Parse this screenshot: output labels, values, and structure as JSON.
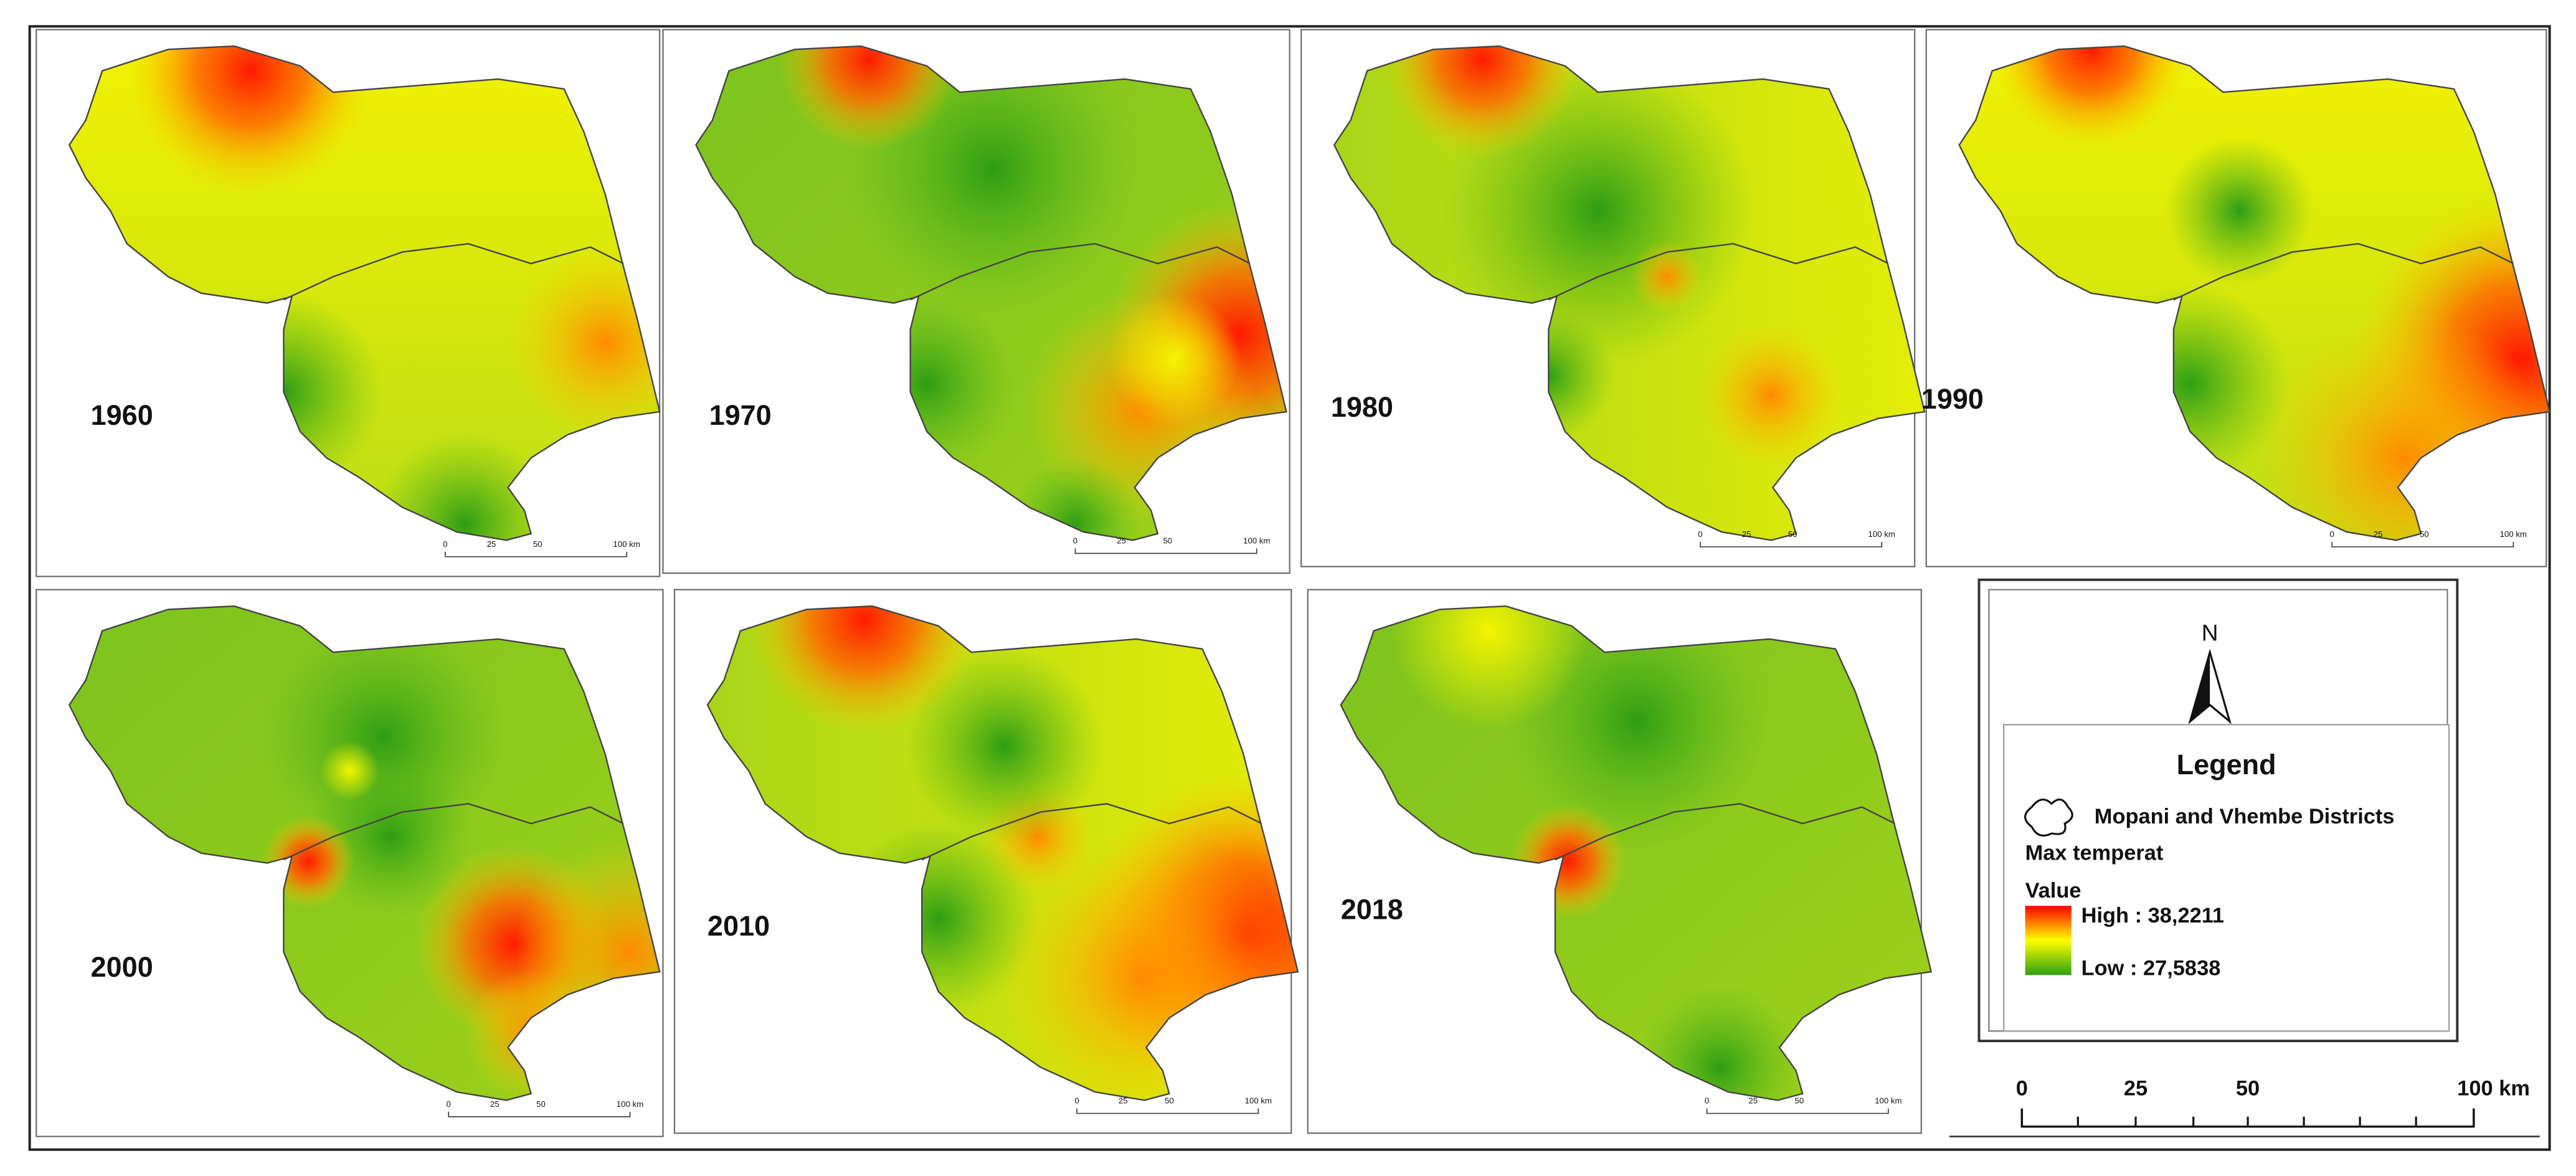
{
  "panels": [
    {
      "year": "1960",
      "scale": [
        "0",
        "25",
        "50",
        "100 km"
      ]
    },
    {
      "year": "1970",
      "scale": [
        "0",
        "25",
        "50",
        "100 km"
      ]
    },
    {
      "year": "1980",
      "scale": [
        "0",
        "25",
        "50",
        "100 km"
      ]
    },
    {
      "year": "1990",
      "scale": [
        "0",
        "25",
        "50",
        "100 km"
      ]
    },
    {
      "year": "2000",
      "scale": [
        "0",
        "25",
        "50",
        "100 km"
      ]
    },
    {
      "year": "2010",
      "scale": [
        "0",
        "25",
        "50",
        "100 km"
      ]
    },
    {
      "year": "2018",
      "scale": [
        "0",
        "25",
        "50",
        "100 km"
      ]
    }
  ],
  "legend": {
    "north": "N",
    "title": "Legend",
    "boundary": "Mopani and Vhembe Districts",
    "field": "Max temperat",
    "value": "Value",
    "high": "High : 38,2211",
    "low": "Low : 27,5838"
  },
  "scale_bar": [
    "0",
    "25",
    "50",
    "100 km"
  ]
}
